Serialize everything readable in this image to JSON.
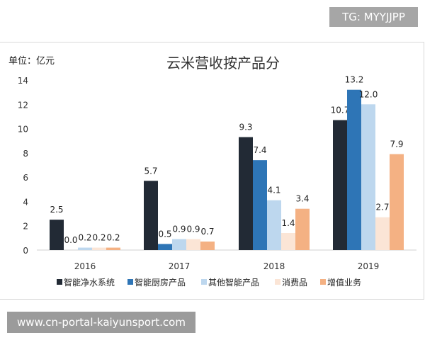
{
  "watermark_top": "TG: MYYJJPP",
  "watermark_bottom": "www.cn-portal-kaiyunsport.com",
  "chart_data": {
    "type": "bar",
    "title": "云米营收按产品分",
    "unit_label": "单位：亿元",
    "categories": [
      "2016",
      "2017",
      "2018",
      "2019"
    ],
    "ylim": [
      0,
      14
    ],
    "yticks": [
      0,
      2,
      4,
      6,
      8,
      10,
      12,
      14
    ],
    "grid": false,
    "legend_position": "bottom",
    "series": [
      {
        "name": "智能净水系统",
        "color": "#222a35",
        "values": [
          2.5,
          5.7,
          9.3,
          10.7
        ]
      },
      {
        "name": "智能厨房产品",
        "color": "#2e75b6",
        "values": [
          0.0,
          0.5,
          7.4,
          13.2
        ]
      },
      {
        "name": "其他智能产品",
        "color": "#bdd7ee",
        "values": [
          0.2,
          0.9,
          4.1,
          12.0
        ]
      },
      {
        "name": "消费品",
        "color": "#fbe5d6",
        "values": [
          0.2,
          0.9,
          1.4,
          2.7
        ]
      },
      {
        "name": "增值业务",
        "color": "#f4b183",
        "values": [
          0.2,
          0.7,
          3.4,
          7.9
        ]
      }
    ]
  }
}
